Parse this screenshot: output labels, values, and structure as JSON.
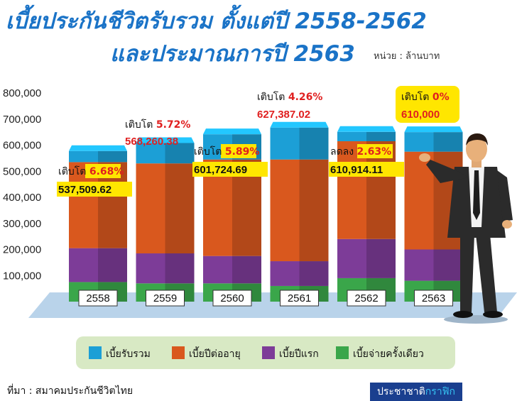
{
  "title_line1": "เบี้ยประกันชีวิตรับรวม ตั้งแต่ปี 2558-2562",
  "title_line2": "และประมาณการปี 2563",
  "unit_label": "หน่วย : ล้านบาท",
  "source_text": "ที่มา : สมาคมประกันชีวิตไทย",
  "brand": {
    "part1": "ประชาชาติ",
    "part2": "กราฟิก"
  },
  "colors": {
    "total": "#1c9fd6",
    "renewal": "#d9581e",
    "first_year": "#7d3c98",
    "single": "#3aa64a",
    "title": "#1a73c7",
    "annotation_red": "#e02020",
    "highlight_yellow": "#ffe600",
    "legend_bg": "#d8e9c4"
  },
  "chart_data": {
    "type": "bar",
    "categories": [
      "2558",
      "2559",
      "2560",
      "2561",
      "2562",
      "2563"
    ],
    "ylim": [
      0,
      800000
    ],
    "yticks": [
      "800,000",
      "700,000",
      "600,000",
      "500,000",
      "400,000",
      "300,000",
      "200,000",
      "100,000"
    ],
    "series": [
      {
        "key": "total",
        "name": "เบี้ยรับรวม",
        "values": [
          537509.62,
          568260.38,
          601724.69,
          627387.02,
          610914.11,
          610000
        ]
      },
      {
        "key": "renewal",
        "name": "เบี้ยปีต่ออายุ",
        "values": [
          330000,
          345000,
          370000,
          390000,
          375000,
          375000
        ]
      },
      {
        "key": "first_year",
        "name": "เบี้ยปีแรก",
        "values": [
          130000,
          115000,
          105000,
          95000,
          150000,
          120000
        ]
      },
      {
        "key": "single",
        "name": "เบี้ยจ่ายครั้งเดียว",
        "values": [
          75000,
          70000,
          70000,
          60000,
          90000,
          80000
        ]
      }
    ],
    "annotations": [
      {
        "label": "เติบโต",
        "pct": "6.68%",
        "value": "537,509.62",
        "highlight": true
      },
      {
        "label": "เติบโต",
        "pct": "5.72%",
        "value": "568,260.38",
        "highlight": false
      },
      {
        "label": "เติบโต",
        "pct": "5.89%",
        "value": "601,724.69",
        "highlight": true
      },
      {
        "label": "เติบโต",
        "pct": "4.26%",
        "value": "627,387.02",
        "highlight": false
      },
      {
        "label": "ลดลง",
        "pct": "2.63%",
        "value": "610,914.11",
        "highlight": true
      },
      {
        "label": "เติบโต",
        "pct": "0%",
        "value": "610,000",
        "highlight": "box"
      }
    ]
  }
}
